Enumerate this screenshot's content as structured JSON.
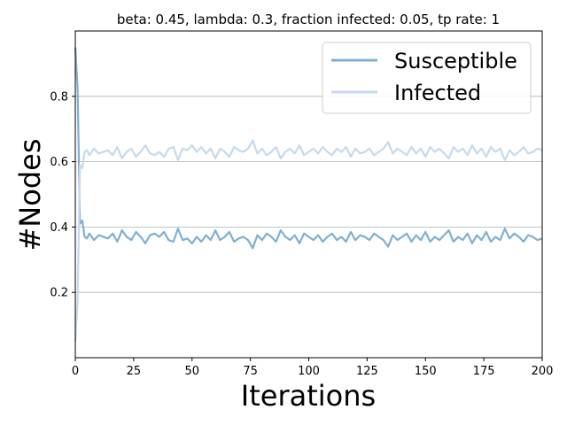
{
  "chart_data": {
    "type": "line",
    "title": "beta: 0.45, lambda: 0.3, fraction infected: 0.05, tp rate: 1",
    "xlabel": "Iterations",
    "ylabel": "#Nodes",
    "xlim": [
      0,
      200
    ],
    "ylim": [
      0.0,
      1.0
    ],
    "xticks": [
      0,
      25,
      50,
      75,
      100,
      125,
      150,
      175,
      200
    ],
    "yticks": [
      0.2,
      0.4,
      0.6,
      0.8
    ],
    "grid": "horizontal",
    "legend_position": "top-right",
    "series": [
      {
        "name": "Susceptible",
        "color": "#7fb0d2",
        "points": [
          [
            0,
            0.95
          ],
          [
            1,
            0.82
          ],
          [
            2,
            0.41
          ],
          [
            3,
            0.42
          ],
          [
            4,
            0.37
          ],
          [
            5,
            0.365
          ],
          [
            6,
            0.38
          ],
          [
            8,
            0.36
          ],
          [
            10,
            0.375
          ],
          [
            12,
            0.37
          ],
          [
            14,
            0.365
          ],
          [
            16,
            0.38
          ],
          [
            18,
            0.355
          ],
          [
            20,
            0.39
          ],
          [
            22,
            0.37
          ],
          [
            24,
            0.36
          ],
          [
            26,
            0.385
          ],
          [
            28,
            0.37
          ],
          [
            30,
            0.35
          ],
          [
            32,
            0.375
          ],
          [
            34,
            0.38
          ],
          [
            36,
            0.37
          ],
          [
            38,
            0.385
          ],
          [
            40,
            0.36
          ],
          [
            42,
            0.355
          ],
          [
            44,
            0.395
          ],
          [
            46,
            0.36
          ],
          [
            48,
            0.365
          ],
          [
            50,
            0.35
          ],
          [
            52,
            0.37
          ],
          [
            54,
            0.355
          ],
          [
            56,
            0.375
          ],
          [
            58,
            0.36
          ],
          [
            60,
            0.39
          ],
          [
            62,
            0.36
          ],
          [
            64,
            0.37
          ],
          [
            66,
            0.385
          ],
          [
            68,
            0.355
          ],
          [
            70,
            0.365
          ],
          [
            72,
            0.37
          ],
          [
            74,
            0.36
          ],
          [
            76,
            0.335
          ],
          [
            78,
            0.375
          ],
          [
            80,
            0.36
          ],
          [
            82,
            0.38
          ],
          [
            84,
            0.37
          ],
          [
            86,
            0.355
          ],
          [
            88,
            0.39
          ],
          [
            90,
            0.37
          ],
          [
            92,
            0.36
          ],
          [
            94,
            0.375
          ],
          [
            96,
            0.35
          ],
          [
            98,
            0.38
          ],
          [
            100,
            0.37
          ],
          [
            102,
            0.36
          ],
          [
            104,
            0.375
          ],
          [
            106,
            0.355
          ],
          [
            108,
            0.37
          ],
          [
            110,
            0.38
          ],
          [
            112,
            0.36
          ],
          [
            114,
            0.37
          ],
          [
            116,
            0.355
          ],
          [
            118,
            0.385
          ],
          [
            120,
            0.36
          ],
          [
            122,
            0.375
          ],
          [
            124,
            0.37
          ],
          [
            126,
            0.36
          ],
          [
            128,
            0.38
          ],
          [
            130,
            0.37
          ],
          [
            132,
            0.36
          ],
          [
            134,
            0.34
          ],
          [
            136,
            0.375
          ],
          [
            138,
            0.36
          ],
          [
            140,
            0.37
          ],
          [
            142,
            0.38
          ],
          [
            144,
            0.355
          ],
          [
            146,
            0.375
          ],
          [
            148,
            0.36
          ],
          [
            150,
            0.385
          ],
          [
            152,
            0.355
          ],
          [
            154,
            0.37
          ],
          [
            156,
            0.36
          ],
          [
            158,
            0.375
          ],
          [
            160,
            0.39
          ],
          [
            162,
            0.355
          ],
          [
            164,
            0.37
          ],
          [
            166,
            0.36
          ],
          [
            168,
            0.38
          ],
          [
            170,
            0.35
          ],
          [
            172,
            0.375
          ],
          [
            174,
            0.36
          ],
          [
            176,
            0.385
          ],
          [
            178,
            0.355
          ],
          [
            180,
            0.37
          ],
          [
            182,
            0.36
          ],
          [
            184,
            0.395
          ],
          [
            186,
            0.365
          ],
          [
            188,
            0.38
          ],
          [
            190,
            0.37
          ],
          [
            192,
            0.355
          ],
          [
            194,
            0.375
          ],
          [
            196,
            0.37
          ],
          [
            198,
            0.36
          ],
          [
            200,
            0.365
          ]
        ]
      },
      {
        "name": "Infected",
        "color": "#c6d9ee",
        "points": [
          [
            0,
            0.05
          ],
          [
            1,
            0.18
          ],
          [
            2,
            0.59
          ],
          [
            3,
            0.58
          ],
          [
            4,
            0.63
          ],
          [
            5,
            0.635
          ],
          [
            6,
            0.62
          ],
          [
            8,
            0.64
          ],
          [
            10,
            0.625
          ],
          [
            12,
            0.63
          ],
          [
            14,
            0.635
          ],
          [
            16,
            0.62
          ],
          [
            18,
            0.645
          ],
          [
            20,
            0.61
          ],
          [
            22,
            0.63
          ],
          [
            24,
            0.64
          ],
          [
            26,
            0.615
          ],
          [
            28,
            0.63
          ],
          [
            30,
            0.65
          ],
          [
            32,
            0.625
          ],
          [
            34,
            0.62
          ],
          [
            36,
            0.63
          ],
          [
            38,
            0.615
          ],
          [
            40,
            0.64
          ],
          [
            42,
            0.645
          ],
          [
            44,
            0.605
          ],
          [
            46,
            0.64
          ],
          [
            48,
            0.635
          ],
          [
            50,
            0.65
          ],
          [
            52,
            0.63
          ],
          [
            54,
            0.645
          ],
          [
            56,
            0.625
          ],
          [
            58,
            0.64
          ],
          [
            60,
            0.61
          ],
          [
            62,
            0.64
          ],
          [
            64,
            0.63
          ],
          [
            66,
            0.615
          ],
          [
            68,
            0.645
          ],
          [
            70,
            0.635
          ],
          [
            72,
            0.63
          ],
          [
            74,
            0.64
          ],
          [
            76,
            0.665
          ],
          [
            78,
            0.625
          ],
          [
            80,
            0.64
          ],
          [
            82,
            0.62
          ],
          [
            84,
            0.63
          ],
          [
            86,
            0.645
          ],
          [
            88,
            0.61
          ],
          [
            90,
            0.63
          ],
          [
            92,
            0.64
          ],
          [
            94,
            0.625
          ],
          [
            96,
            0.65
          ],
          [
            98,
            0.62
          ],
          [
            100,
            0.63
          ],
          [
            102,
            0.64
          ],
          [
            104,
            0.625
          ],
          [
            106,
            0.645
          ],
          [
            108,
            0.63
          ],
          [
            110,
            0.62
          ],
          [
            112,
            0.64
          ],
          [
            114,
            0.63
          ],
          [
            116,
            0.645
          ],
          [
            118,
            0.615
          ],
          [
            120,
            0.64
          ],
          [
            122,
            0.625
          ],
          [
            124,
            0.63
          ],
          [
            126,
            0.64
          ],
          [
            128,
            0.62
          ],
          [
            130,
            0.63
          ],
          [
            132,
            0.64
          ],
          [
            134,
            0.66
          ],
          [
            136,
            0.625
          ],
          [
            138,
            0.64
          ],
          [
            140,
            0.63
          ],
          [
            142,
            0.62
          ],
          [
            144,
            0.645
          ],
          [
            146,
            0.625
          ],
          [
            148,
            0.64
          ],
          [
            150,
            0.615
          ],
          [
            152,
            0.645
          ],
          [
            154,
            0.63
          ],
          [
            156,
            0.64
          ],
          [
            158,
            0.625
          ],
          [
            160,
            0.61
          ],
          [
            162,
            0.645
          ],
          [
            164,
            0.63
          ],
          [
            166,
            0.64
          ],
          [
            168,
            0.62
          ],
          [
            170,
            0.65
          ],
          [
            172,
            0.625
          ],
          [
            174,
            0.64
          ],
          [
            176,
            0.615
          ],
          [
            178,
            0.645
          ],
          [
            180,
            0.63
          ],
          [
            182,
            0.64
          ],
          [
            184,
            0.605
          ],
          [
            186,
            0.635
          ],
          [
            188,
            0.62
          ],
          [
            190,
            0.63
          ],
          [
            192,
            0.645
          ],
          [
            194,
            0.625
          ],
          [
            196,
            0.63
          ],
          [
            198,
            0.64
          ],
          [
            200,
            0.635
          ]
        ]
      }
    ]
  }
}
